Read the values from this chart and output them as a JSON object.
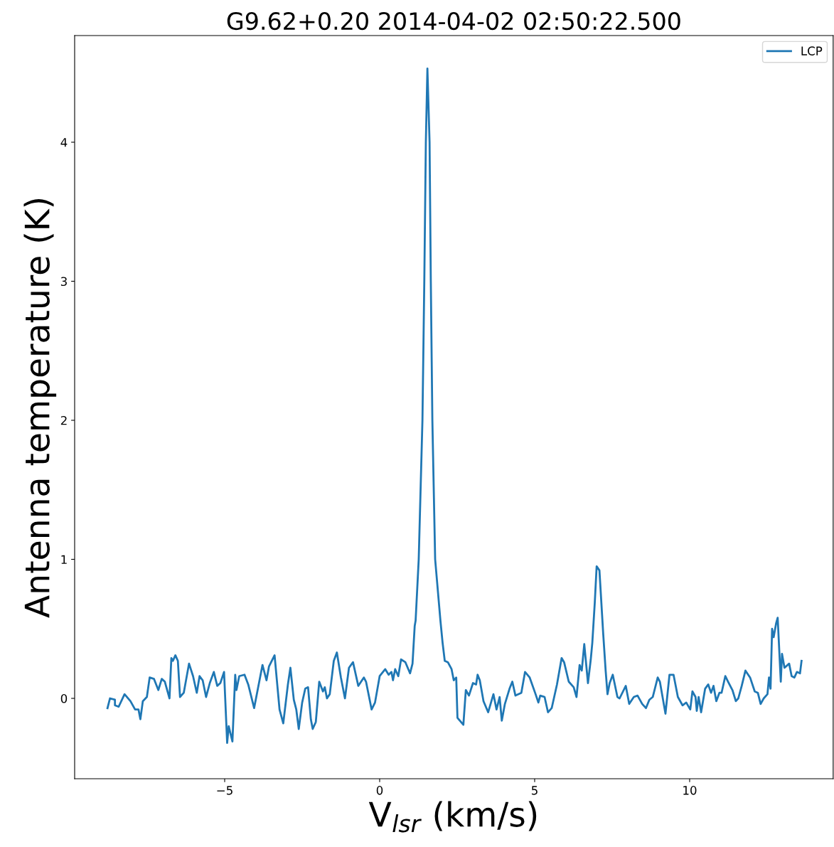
{
  "chart_data": {
    "type": "line",
    "title": "G9.62+0.20 2014-04-02 02:50:22.500",
    "xlabel": "V$_{lsr}$ (km/s)",
    "ylabel": "Antenna temperature (K)",
    "xlim": [
      -9.84,
      14.63
    ],
    "ylim": [
      -0.578,
      4.767
    ],
    "xticks": [
      {
        "value": -5,
        "label": "−5"
      },
      0,
      5,
      10
    ],
    "yticks": [
      0,
      1,
      2,
      3,
      4
    ],
    "grid": false,
    "legend": "top right",
    "marker": "none",
    "line_style": "solid",
    "series": [
      {
        "name": "LCP",
        "color": "#1f77b4",
        "x": [
          -8.78,
          -8.7,
          -8.54,
          -8.54,
          -8.42,
          -8.23,
          -8.04,
          -7.89,
          -7.78,
          -7.72,
          -7.64,
          -7.51,
          -7.42,
          -7.28,
          -7.14,
          -7.03,
          -6.93,
          -6.78,
          -6.72,
          -6.67,
          -6.59,
          -6.51,
          -6.44,
          -6.32,
          -6.15,
          -6.02,
          -5.9,
          -5.81,
          -5.71,
          -5.6,
          -5.48,
          -5.35,
          -5.24,
          -5.14,
          -5.02,
          -4.92,
          -4.87,
          -4.75,
          -4.66,
          -4.62,
          -4.53,
          -4.36,
          -4.24,
          -4.05,
          -3.78,
          -3.65,
          -3.57,
          -3.39,
          -3.23,
          -3.11,
          -2.96,
          -2.88,
          -2.77,
          -2.69,
          -2.61,
          -2.5,
          -2.4,
          -2.31,
          -2.22,
          -2.16,
          -2.06,
          -1.95,
          -1.83,
          -1.77,
          -1.7,
          -1.61,
          -1.48,
          -1.38,
          -1.25,
          -1.12,
          -0.99,
          -0.86,
          -0.69,
          -0.51,
          -0.44,
          -0.26,
          -0.15,
          0.0,
          0.18,
          0.29,
          0.38,
          0.43,
          0.5,
          0.6,
          0.69,
          0.83,
          0.98,
          1.06,
          1.13,
          1.16,
          1.26,
          1.38,
          1.44,
          1.49,
          1.54,
          1.61,
          1.65,
          1.7,
          1.79,
          1.96,
          2.03,
          2.1,
          2.2,
          2.32,
          2.39,
          2.47,
          2.51,
          2.7,
          2.78,
          2.88,
          3.01,
          3.11,
          3.16,
          3.23,
          3.35,
          3.5,
          3.67,
          3.77,
          3.87,
          3.94,
          4.04,
          4.19,
          4.28,
          4.38,
          4.57,
          4.69,
          4.84,
          5.03,
          5.12,
          5.18,
          5.32,
          5.43,
          5.55,
          5.72,
          5.87,
          5.95,
          6.1,
          6.26,
          6.35,
          6.45,
          6.52,
          6.6,
          6.72,
          6.81,
          6.86,
          6.94,
          7.0,
          7.09,
          7.21,
          7.29,
          7.35,
          7.42,
          7.52,
          7.67,
          7.74,
          7.94,
          8.05,
          8.2,
          8.32,
          8.47,
          8.59,
          8.7,
          8.81,
          8.97,
          9.04,
          9.22,
          9.35,
          9.48,
          9.62,
          9.77,
          9.89,
          10.02,
          10.09,
          10.19,
          10.23,
          10.29,
          10.37,
          10.5,
          10.6,
          10.69,
          10.77,
          10.86,
          10.96,
          11.03,
          11.15,
          11.24,
          11.38,
          11.49,
          11.57,
          11.68,
          11.8,
          11.95,
          12.1,
          12.2,
          12.29,
          12.39,
          12.51,
          12.56,
          12.61,
          12.66,
          12.71,
          12.79,
          12.84,
          12.94,
          12.98,
          13.06,
          13.21,
          13.29,
          13.38,
          13.46,
          13.56,
          13.61
        ],
        "values": [
          -0.07,
          0.0,
          -0.01,
          -0.05,
          -0.06,
          0.03,
          -0.02,
          -0.08,
          -0.08,
          -0.15,
          -0.02,
          0.01,
          0.15,
          0.14,
          0.06,
          0.14,
          0.12,
          0.0,
          0.29,
          0.27,
          0.31,
          0.27,
          0.01,
          0.04,
          0.25,
          0.16,
          0.04,
          0.16,
          0.13,
          0.01,
          0.11,
          0.19,
          0.09,
          0.11,
          0.19,
          -0.32,
          -0.2,
          -0.31,
          0.17,
          0.06,
          0.16,
          0.17,
          0.1,
          -0.07,
          0.24,
          0.13,
          0.23,
          0.31,
          -0.08,
          -0.18,
          0.1,
          0.22,
          -0.01,
          -0.08,
          -0.22,
          -0.03,
          0.07,
          0.08,
          -0.15,
          -0.22,
          -0.17,
          0.12,
          0.05,
          0.08,
          0.0,
          0.03,
          0.27,
          0.33,
          0.15,
          0.0,
          0.22,
          0.26,
          0.09,
          0.15,
          0.12,
          -0.08,
          -0.03,
          0.16,
          0.21,
          0.17,
          0.19,
          0.13,
          0.21,
          0.16,
          0.28,
          0.26,
          0.18,
          0.25,
          0.52,
          0.56,
          1.0,
          2.0,
          3.0,
          4.0,
          4.53,
          4.0,
          3.0,
          2.0,
          1.0,
          0.56,
          0.4,
          0.27,
          0.26,
          0.21,
          0.13,
          0.15,
          -0.14,
          -0.19,
          0.06,
          0.02,
          0.11,
          0.1,
          0.17,
          0.13,
          -0.02,
          -0.1,
          0.03,
          -0.08,
          0.01,
          -0.16,
          -0.04,
          0.07,
          0.12,
          0.02,
          0.04,
          0.19,
          0.15,
          0.03,
          -0.03,
          0.02,
          0.01,
          -0.1,
          -0.07,
          0.1,
          0.29,
          0.26,
          0.12,
          0.08,
          0.01,
          0.24,
          0.2,
          0.39,
          0.11,
          0.28,
          0.4,
          0.69,
          0.95,
          0.92,
          0.47,
          0.2,
          0.03,
          0.11,
          0.17,
          0.01,
          0.0,
          0.09,
          -0.04,
          0.01,
          0.02,
          -0.04,
          -0.07,
          -0.01,
          0.01,
          0.15,
          0.12,
          -0.11,
          0.17,
          0.17,
          0.01,
          -0.05,
          -0.03,
          -0.08,
          0.05,
          0.01,
          -0.09,
          0.01,
          -0.1,
          0.07,
          0.1,
          0.04,
          0.09,
          -0.02,
          0.04,
          0.04,
          0.16,
          0.12,
          0.06,
          -0.02,
          0.0,
          0.09,
          0.2,
          0.15,
          0.05,
          0.04,
          -0.04,
          0.0,
          0.03,
          0.15,
          0.07,
          0.5,
          0.44,
          0.54,
          0.58,
          0.12,
          0.32,
          0.22,
          0.25,
          0.16,
          0.15,
          0.19,
          0.18,
          0.27
        ]
      }
    ]
  }
}
